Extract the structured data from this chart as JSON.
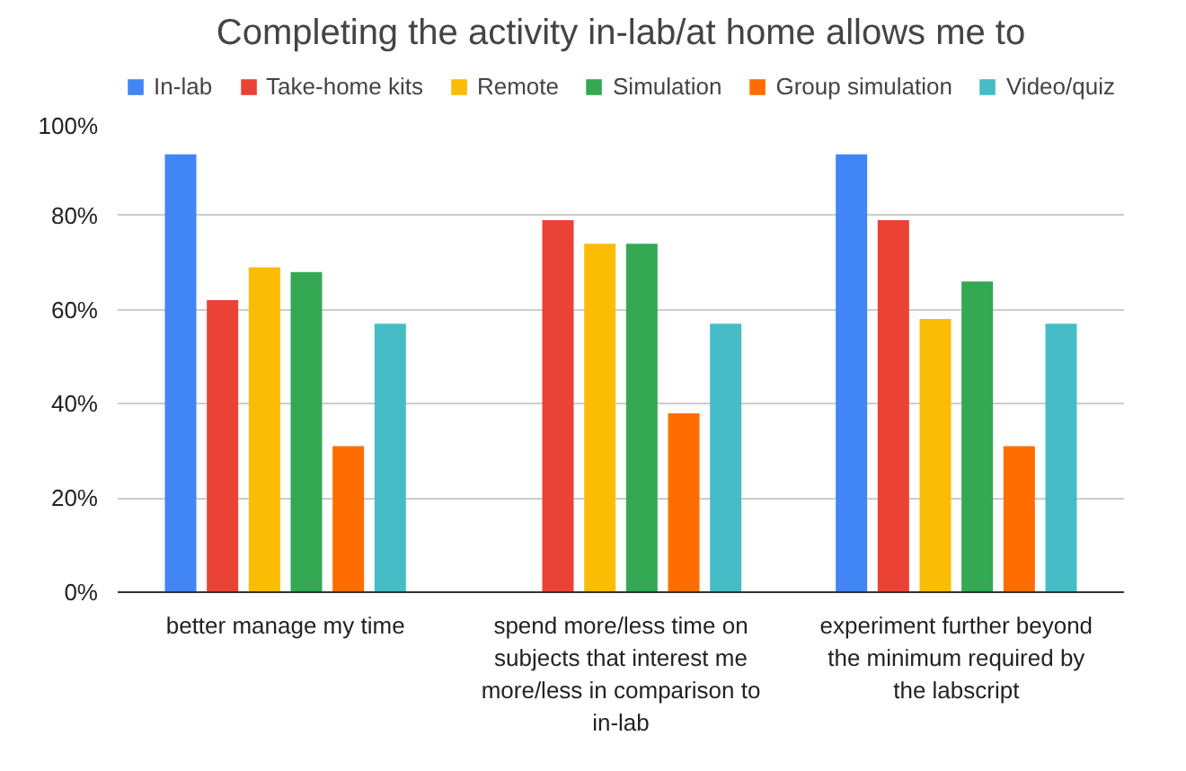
{
  "chart_data": {
    "type": "bar",
    "title": "Completing the activity in-lab/at home allows me to",
    "categories": [
      "better manage my time",
      "spend more/less time on subjects that interest me more/less in comparison to in-lab",
      "experiment further beyond the minimum required by the labscript"
    ],
    "series": [
      {
        "name": "In-lab",
        "color": "#4285f4",
        "values": [
          93,
          null,
          93
        ]
      },
      {
        "name": "Take-home kits",
        "color": "#ea4335",
        "values": [
          62,
          79,
          79
        ]
      },
      {
        "name": "Remote",
        "color": "#fbbc04",
        "values": [
          69,
          74,
          58
        ]
      },
      {
        "name": "Simulation",
        "color": "#34a853",
        "values": [
          68,
          74,
          66
        ]
      },
      {
        "name": "Group simulation",
        "color": "#ff6d01",
        "values": [
          31,
          38,
          31
        ]
      },
      {
        "name": "Video/quiz",
        "color": "#46bdc6",
        "values": [
          57,
          57,
          57
        ]
      }
    ],
    "ylim": [
      0,
      100
    ],
    "yticks": [
      {
        "value": 0,
        "label": "0%"
      },
      {
        "value": 20,
        "label": "20%"
      },
      {
        "value": 40,
        "label": "40%"
      },
      {
        "value": 60,
        "label": "60%"
      },
      {
        "value": 80,
        "label": "80%"
      },
      {
        "value": 100,
        "label": "100%"
      }
    ],
    "grid": "y",
    "legend": "top"
  }
}
